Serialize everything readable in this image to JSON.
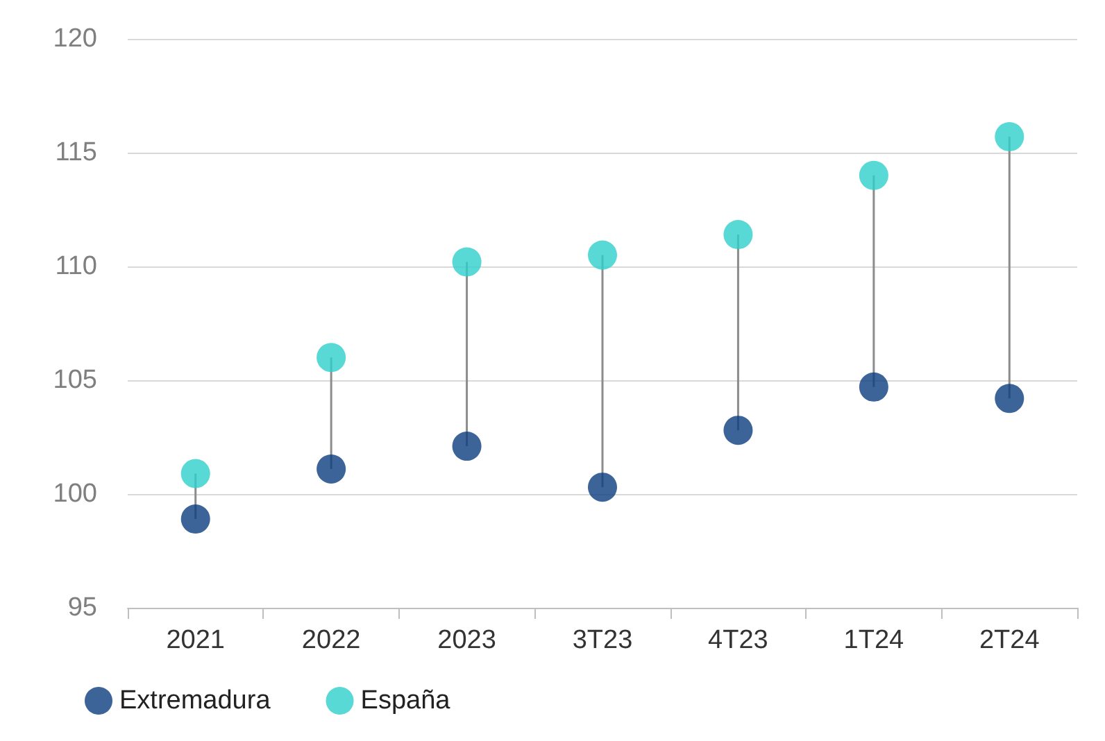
{
  "chart_data": {
    "type": "scatter",
    "categories": [
      "2021",
      "2022",
      "2023",
      "3T23",
      "4T23",
      "1T24",
      "2T24"
    ],
    "series": [
      {
        "name": "Extremadura",
        "color": "#0b3d7e",
        "values": [
          98.9,
          101.1,
          102.1,
          100.3,
          102.8,
          104.7,
          104.2
        ]
      },
      {
        "name": "España",
        "color": "#2fcfcc",
        "values": [
          100.9,
          106.0,
          110.2,
          110.5,
          111.4,
          114.0,
          115.7
        ]
      }
    ],
    "ylim": [
      95,
      120
    ],
    "yticks": [
      95,
      100,
      105,
      110,
      115,
      120
    ],
    "grid": "y",
    "legend": "bottom left",
    "marker": "circle"
  }
}
